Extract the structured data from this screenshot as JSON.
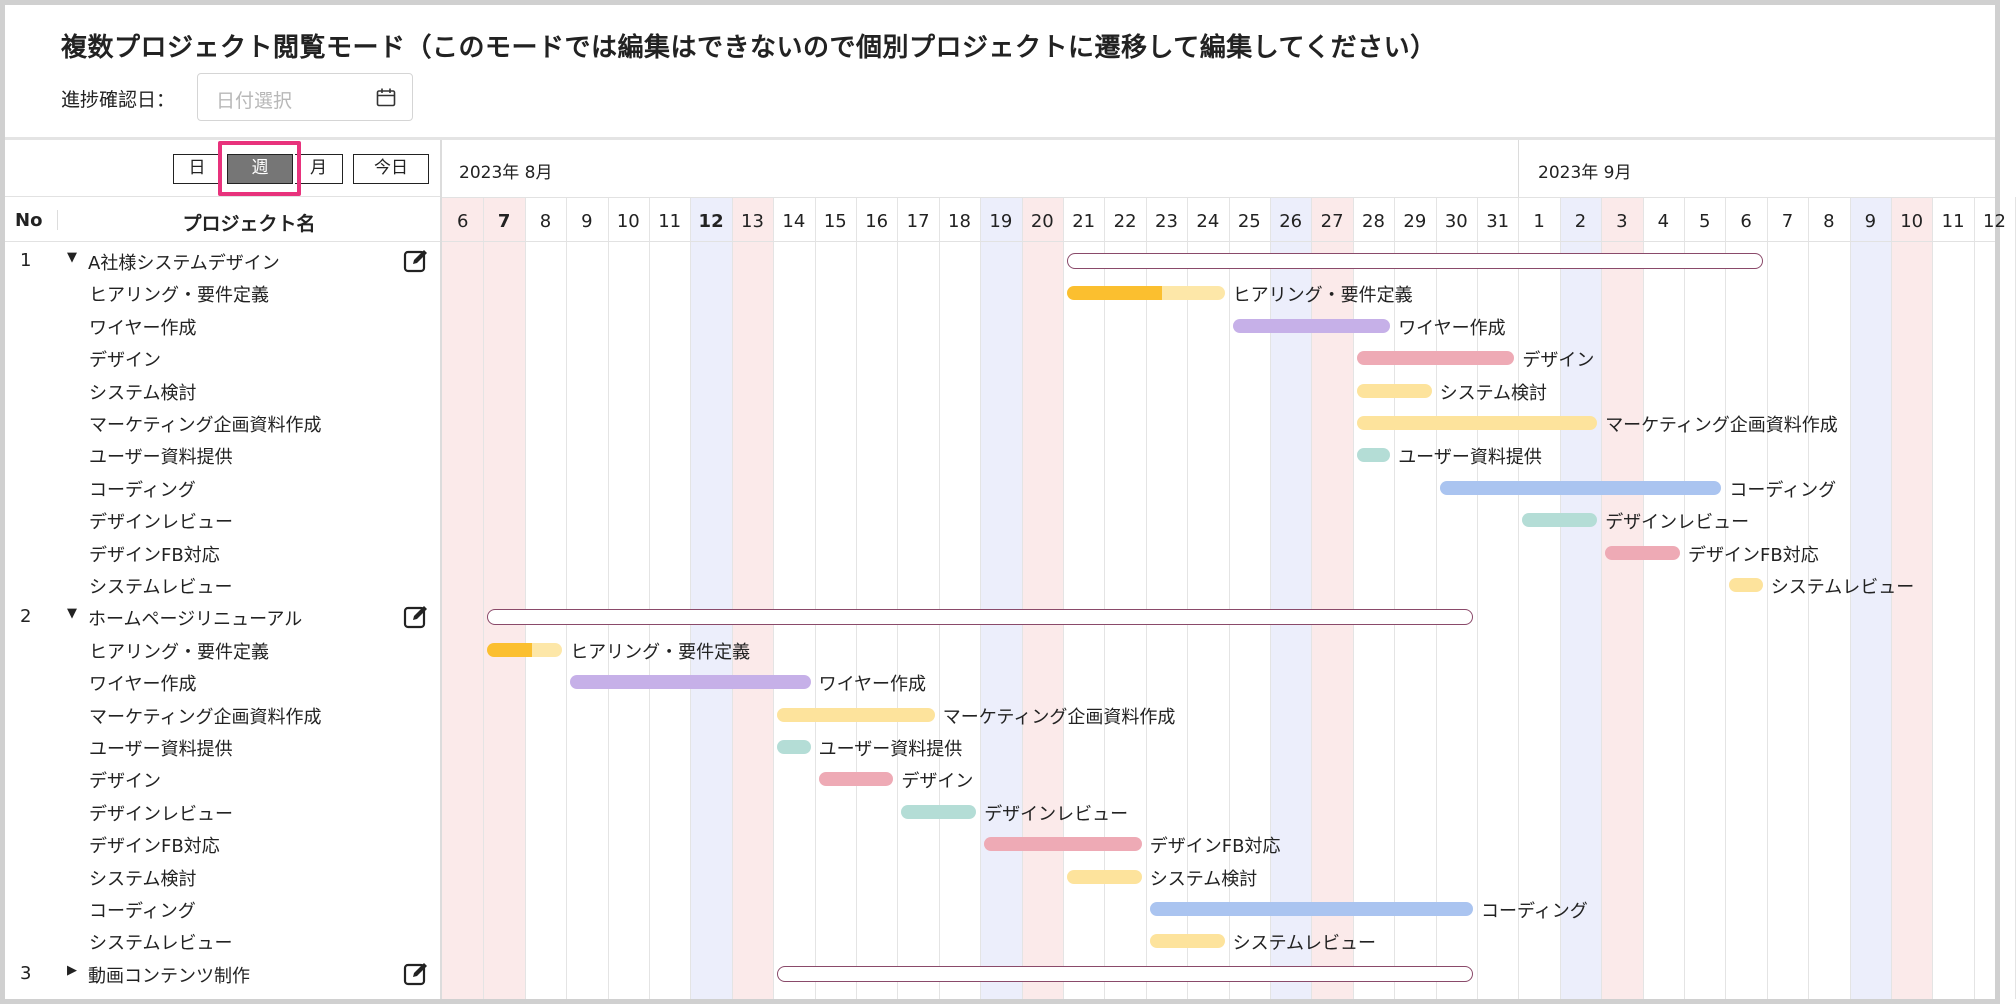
{
  "title": "複数プロジェクト閲覧モード（このモードでは編集はできないので個別プロジェクトに遷移して編集してください）",
  "date_filter": {
    "label": "進捗確認日：",
    "placeholder": "日付選択"
  },
  "view_buttons": {
    "day": "日",
    "week": "週",
    "month": "月",
    "today": "今日",
    "active": "week"
  },
  "list_header": {
    "no": "No",
    "name": "プロジェクト名"
  },
  "months": [
    "2023年 8月",
    "2023年 9月"
  ],
  "days": [
    "6",
    "7",
    "8",
    "9",
    "10",
    "11",
    "12",
    "13",
    "14",
    "15",
    "16",
    "17",
    "18",
    "19",
    "20",
    "21",
    "22",
    "23",
    "24",
    "25",
    "26",
    "27",
    "28",
    "29",
    "30",
    "31",
    "1",
    "2",
    "3",
    "4",
    "5",
    "6",
    "7",
    "8",
    "9",
    "10",
    "11",
    "12"
  ],
  "colors": {
    "saturday_bg": "#eceefb",
    "sunday_bg": "#fbeaea",
    "hearing": "#fbbf2f",
    "hearing_light": "#fde7a8",
    "wireframe": "#c6b0e8",
    "design": "#eeaab5",
    "yellow": "#fde39c",
    "teal": "#b4ddd6",
    "blue": "#aac4f0",
    "summary_border": "#8a4a6a",
    "highlight": "#e8327c"
  },
  "projects": [
    {
      "no": "1",
      "name": "A社様システムデザイン",
      "expanded": true,
      "tasks": [
        "ヒアリング・要件定義",
        "ワイヤー作成",
        "デザイン",
        "システム検討",
        "マーケティング企画資料作成",
        "ユーザー資料提供",
        "コーディング",
        "デザインレビュー",
        "デザインFB対応",
        "システムレビュー"
      ]
    },
    {
      "no": "2",
      "name": "ホームページリニューアル",
      "expanded": true,
      "tasks": [
        "ヒアリング・要件定義",
        "ワイヤー作成",
        "マーケティング企画資料作成",
        "ユーザー資料提供",
        "デザイン",
        "デザインレビュー",
        "デザインFB対応",
        "システム検討",
        "コーディング",
        "システムレビュー"
      ]
    },
    {
      "no": "3",
      "name": "動画コンテンツ制作",
      "expanded": false,
      "tasks": []
    }
  ],
  "gantt_labels": {
    "p1": [
      "ヒアリング・要件定義",
      "ワイヤー作成",
      "デザイン",
      "システム検討",
      "マーケティング企画資料作成",
      "ユーザー資料提供",
      "コーディング",
      "デザインレビュー",
      "デザインFB対応",
      "システムレビュー"
    ],
    "p2": [
      "ヒアリング・要件定義",
      "ワイヤー作成",
      "マーケティング企画資料作成",
      "ユーザー資料提供",
      "デザイン",
      "デザインレビュー",
      "デザインFB対応",
      "システム検討",
      "コーディング",
      "システムレビュー"
    ]
  }
}
